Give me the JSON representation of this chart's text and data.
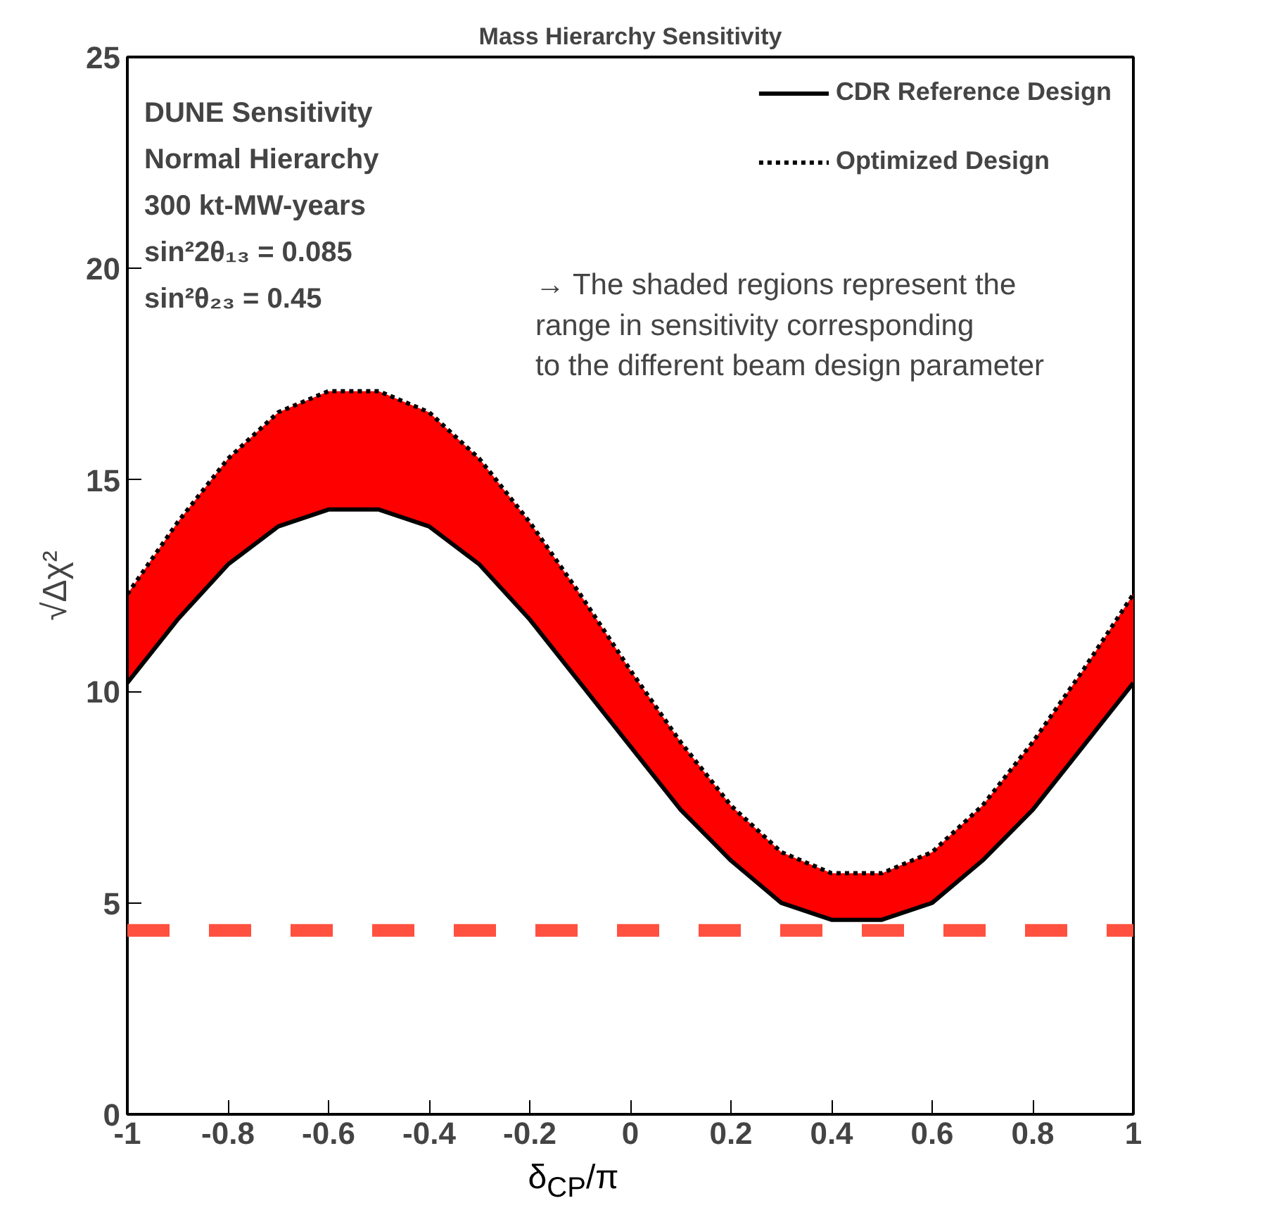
{
  "chart_data": {
    "type": "line",
    "title": "Mass Hierarchy Sensitivity",
    "xlabel": "δ$_{CP}$/π",
    "ylabel": "√Δχ²",
    "x": [
      -1,
      -0.9,
      -0.8,
      -0.7,
      -0.6,
      -0.5,
      -0.4,
      -0.3,
      -0.2,
      -0.1,
      0,
      0.1,
      0.2,
      0.3,
      0.4,
      0.5,
      0.6,
      0.7,
      0.8,
      0.9,
      1
    ],
    "series": [
      {
        "name": "CDR Reference Design",
        "color": "#000000",
        "line_style": "solid",
        "values": [
          10.2,
          11.7,
          13.0,
          13.9,
          14.3,
          14.3,
          13.9,
          13.0,
          11.7,
          10.2,
          8.7,
          7.2,
          6.0,
          5.0,
          4.6,
          4.6,
          5.0,
          6.0,
          7.2,
          8.7,
          10.2
        ]
      },
      {
        "name": "Optimized Design",
        "color": "#000000",
        "line_style": "dotted",
        "values": [
          12.3,
          14.0,
          15.5,
          16.6,
          17.1,
          17.1,
          16.6,
          15.5,
          14.0,
          12.3,
          10.5,
          8.8,
          7.3,
          6.2,
          5.7,
          5.7,
          6.2,
          7.3,
          8.8,
          10.5,
          12.3
        ],
        "upper": [
          12.3,
          14.0,
          15.5,
          16.6,
          17.1,
          17.1,
          16.6,
          15.5,
          14.0,
          12.3,
          10.5,
          8.8,
          7.3,
          6.2,
          5.7,
          5.7,
          6.2,
          7.3,
          8.8,
          10.5,
          12.3
        ],
        "lower": [
          10.2,
          11.7,
          13.0,
          13.9,
          14.3,
          14.3,
          13.9,
          13.0,
          11.7,
          10.2,
          8.7,
          7.2,
          6.0,
          5.0,
          4.6,
          4.6,
          5.0,
          6.0,
          7.2,
          8.7,
          10.2
        ]
      }
    ],
    "xlim": [
      -1,
      1
    ],
    "ylim": [
      0,
      25
    ],
    "xticks": [
      -1,
      -0.8,
      -0.6,
      -0.4,
      -0.2,
      0,
      0.2,
      0.4,
      0.6,
      0.8,
      1
    ],
    "yticks": [
      0,
      5,
      10,
      15,
      20,
      25
    ],
    "ref_lines": [
      {
        "axis": "y",
        "value": 4.35,
        "color": "#ff5040",
        "line_style": "dashed"
      }
    ],
    "annotations": [
      "DUNE Sensitivity",
      "Normal Hierarchy",
      "300 kt-MW-years",
      "sin²2θ₁₃ = 0.085",
      "sin²θ₂₃ = 0.45",
      "→ The shaded regions represent the\nrange in sensitivity corresponding\nto the different beam design parameter"
    ],
    "legend": "top right",
    "grid": false,
    "marker": "none"
  }
}
